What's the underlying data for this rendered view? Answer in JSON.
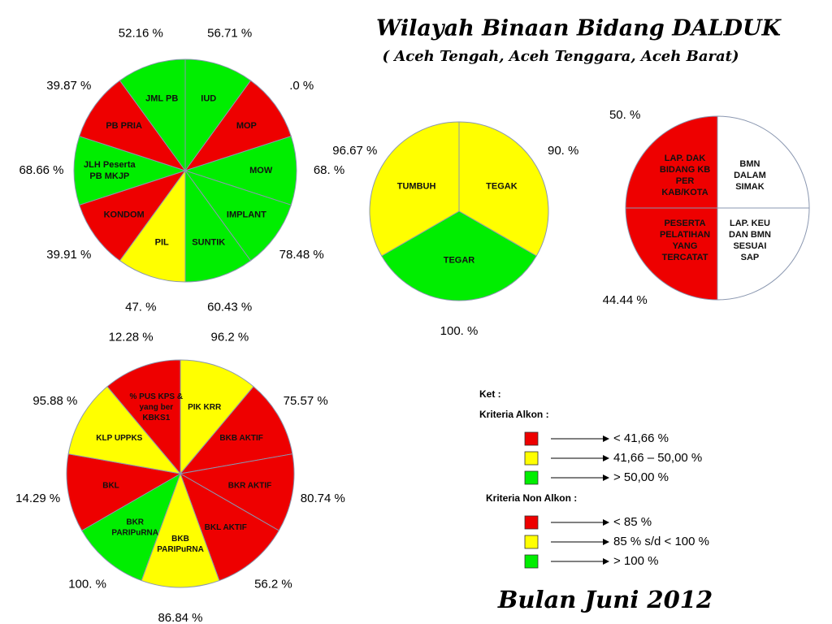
{
  "title": "Wilayah Binaan Bidang DALDUK",
  "subtitle": "( Aceh Tengah, Aceh Tenggara, Aceh Barat)",
  "pies": [
    {
      "segments": [
        {
          "label": [
            "IUD"
          ],
          "color": "#00ee00",
          "value_label": "56.71 %"
        },
        {
          "label": [
            "MOP"
          ],
          "color": "#ee0000",
          "value_label": ".0 %"
        },
        {
          "label": [
            "MOW"
          ],
          "color": "#00ee00",
          "value_label": "68.  %"
        },
        {
          "label": [
            "IMPLANT"
          ],
          "color": "#00ee00",
          "value_label": "78.48 %"
        },
        {
          "label": [
            "SUNTIK"
          ],
          "color": "#00ee00",
          "value_label": "60.43 %"
        },
        {
          "label": [
            "PIL"
          ],
          "color": "#ffff00",
          "value_label": "47.  %"
        },
        {
          "label": [
            "KONDOM"
          ],
          "color": "#ee0000",
          "value_label": "39.91 %"
        },
        {
          "label": [
            "JLH Peserta",
            "PB MKJP"
          ],
          "color": "#00ee00",
          "value_label": "68.66 %"
        },
        {
          "label": [
            "PB PRIA"
          ],
          "color": "#ee0000",
          "value_label": "39.87 %"
        },
        {
          "label": [
            "JML PB"
          ],
          "color": "#00ee00",
          "value_label": "52.16 %"
        }
      ]
    },
    {
      "segments": [
        {
          "label": [
            "TEGAK"
          ],
          "color": "#ffff00",
          "value_label": "90.  %"
        },
        {
          "label": [
            "TEGAR"
          ],
          "color": "#00ee00",
          "value_label": "100.  %"
        },
        {
          "label": [
            "TUMBUH"
          ],
          "color": "#ffff00",
          "value_label": "96.67 %"
        }
      ]
    },
    {
      "segments": [
        {
          "label": [
            "BMN",
            "DALAM",
            "SIMAK"
          ],
          "color": "#ffffff"
        },
        {
          "label": [
            "LAP. KEU",
            "DAN BMN",
            "SESUAI",
            "SAP"
          ],
          "color": "#ffffff"
        },
        {
          "label": [
            "PESERTA",
            "PELATIHAN",
            "YANG",
            "TERCATAT"
          ],
          "color": "#ee0000",
          "value_label": "44.44 %"
        },
        {
          "label": [
            "LAP. DAK",
            "BIDANG KB",
            "PER",
            "KAB/KOTA"
          ],
          "color": "#ee0000",
          "value_label": "50.  %"
        }
      ]
    },
    {
      "segments": [
        {
          "label": [
            "PIK KRR"
          ],
          "color": "#ffff00",
          "value_label": "96.2  %"
        },
        {
          "label": [
            "BKB AKTIF"
          ],
          "color": "#ee0000",
          "value_label": "75.57 %"
        },
        {
          "label": [
            "BKR AKTIF"
          ],
          "color": "#ee0000",
          "value_label": "80.74 %"
        },
        {
          "label": [
            "BKL AKTIF"
          ],
          "color": "#ee0000",
          "value_label": "56.2 %"
        },
        {
          "label": [
            "BKB",
            "PARIPuRNA"
          ],
          "color": "#ffff00",
          "value_label": "86.84 %"
        },
        {
          "label": [
            "BKR",
            "PARIPuRNA"
          ],
          "color": "#00ee00",
          "value_label": "100.  %"
        },
        {
          "label": [
            "BKL"
          ],
          "color": "#ee0000",
          "value_label": "14.29 %"
        },
        {
          "label": [
            "KLP UPPKS"
          ],
          "color": "#ffff00",
          "value_label": "95.88 %"
        },
        {
          "label": [
            "% PUS KPS &",
            "yang ber",
            "KBKS1"
          ],
          "color": "#ee0000",
          "value_label": "12.28 %"
        }
      ]
    }
  ],
  "legend": {
    "title": "Ket :",
    "groups": [
      {
        "title": "Kriteria Alkon  :",
        "items": [
          {
            "color": "#ee0000",
            "text": "< 41,66 %"
          },
          {
            "color": "#ffff00",
            "text": "41,66 – 50,00  %"
          },
          {
            "color": "#00ee00",
            "text": ">  50,00 %"
          }
        ]
      },
      {
        "title": "Kriteria Non Alkon  :",
        "items": [
          {
            "color": "#ee0000",
            "text": "< 85 %"
          },
          {
            "color": "#ffff00",
            "text": "85 % s/d < 100 %"
          },
          {
            "color": "#00ee00",
            "text": ">  100 %"
          }
        ]
      }
    ]
  },
  "footer": "Bulan Juni 2012"
}
